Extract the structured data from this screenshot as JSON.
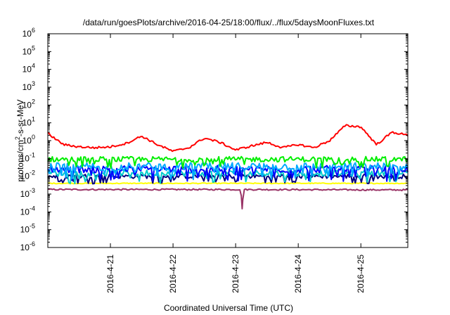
{
  "chart_data": {
    "type": "line",
    "title": "/data/run/goesPlots/archive/2016-04-25/18:00/flux/../flux/5daysMoonFluxes.txt",
    "xlabel": "Coordinated Universal Time (UTC)",
    "ylabel": "protons/cm2-s-sr-MeV",
    "ylabel_parts": {
      "pre": "protons/cm",
      "sup": "2",
      "post": "-s-sr-MeV"
    },
    "y_scale": "log",
    "ylim": [
      1e-06,
      1000000.0
    ],
    "y_ticks": [
      {
        "value": 1e-06,
        "base": "10",
        "exp": "-6"
      },
      {
        "value": 1e-05,
        "base": "10",
        "exp": "-5"
      },
      {
        "value": 0.0001,
        "base": "10",
        "exp": "-4"
      },
      {
        "value": 0.001,
        "base": "10",
        "exp": "-3"
      },
      {
        "value": 0.01,
        "base": "10",
        "exp": "-2"
      },
      {
        "value": 0.1,
        "base": "10",
        "exp": "-1"
      },
      {
        "value": 1,
        "base": "10",
        "exp": "0"
      },
      {
        "value": 10,
        "base": "10",
        "exp": "1"
      },
      {
        "value": 100,
        "base": "10",
        "exp": "2"
      },
      {
        "value": 1000,
        "base": "10",
        "exp": "3"
      },
      {
        "value": 10000,
        "base": "10",
        "exp": "4"
      },
      {
        "value": 100000,
        "base": "10",
        "exp": "5"
      },
      {
        "value": 1000000,
        "base": "10",
        "exp": "6"
      }
    ],
    "x_range_days": [
      "2016-04-20 00:00",
      "2016-04-25 18:00"
    ],
    "x_ticks": [
      "2016-4-21",
      "2016-4-22",
      "2016-4-23",
      "2016-4-24",
      "2016-4-25"
    ],
    "grid": false,
    "legend": "none",
    "series": [
      {
        "color": "#ff0000",
        "x": [
          "2016-04-20 00:00",
          "2016-04-20 06:00",
          "2016-04-20 12:00",
          "2016-04-20 18:00",
          "2016-04-21 00:00",
          "2016-04-21 06:00",
          "2016-04-21 12:00",
          "2016-04-21 18:00",
          "2016-04-22 00:00",
          "2016-04-22 06:00",
          "2016-04-22 12:00",
          "2016-04-22 18:00",
          "2016-04-23 00:00",
          "2016-04-23 06:00",
          "2016-04-23 12:00",
          "2016-04-23 18:00",
          "2016-04-24 00:00",
          "2016-04-24 06:00",
          "2016-04-24 12:00",
          "2016-04-24 18:00",
          "2016-04-25 00:00",
          "2016-04-25 06:00",
          "2016-04-25 12:00",
          "2016-04-25 18:00"
        ],
        "values": [
          2.5,
          0.6,
          0.45,
          0.4,
          0.45,
          0.7,
          1.8,
          0.6,
          0.25,
          0.4,
          1.4,
          0.8,
          0.3,
          0.5,
          0.8,
          0.4,
          0.6,
          0.4,
          1.0,
          7.0,
          6.0,
          0.6,
          3.0,
          2.0
        ]
      },
      {
        "color": "#00ee00",
        "x": [
          "2016-04-20 00:00",
          "2016-04-25 18:00"
        ],
        "values": [
          0.09,
          0.09
        ],
        "noise": 0.3
      },
      {
        "color": "#00aaff",
        "x": [
          "2016-04-20 00:00",
          "2016-04-25 18:00"
        ],
        "values": [
          0.035,
          0.035
        ],
        "noise": 0.45
      },
      {
        "color": "#0000ff",
        "x": [
          "2016-04-20 00:00",
          "2016-04-25 18:00"
        ],
        "values": [
          0.025,
          0.025
        ],
        "noise": 0.4
      },
      {
        "color": "#00cccc",
        "x": [
          "2016-04-20 00:00",
          "2016-04-25 18:00"
        ],
        "values": [
          0.015,
          0.015
        ],
        "noise": 0.35
      },
      {
        "color": "#000080",
        "x": [
          "2016-04-20 00:00",
          "2016-04-25 18:00"
        ],
        "values": [
          0.01,
          0.01
        ],
        "noise": 0.25
      },
      {
        "color": "#ffff00",
        "x": [
          "2016-04-20 00:00",
          "2016-04-25 18:00"
        ],
        "values": [
          0.004,
          0.004
        ],
        "noise": 0.05
      },
      {
        "color": "#993366",
        "x": [
          "2016-04-20 00:00",
          "2016-04-23 02:00",
          "2016-04-23 02:30",
          "2016-04-23 03:00",
          "2016-04-25 18:00"
        ],
        "values": [
          0.0018,
          0.0018,
          0.00015,
          0.0018,
          0.0017
        ],
        "noise": 0.08
      }
    ]
  }
}
